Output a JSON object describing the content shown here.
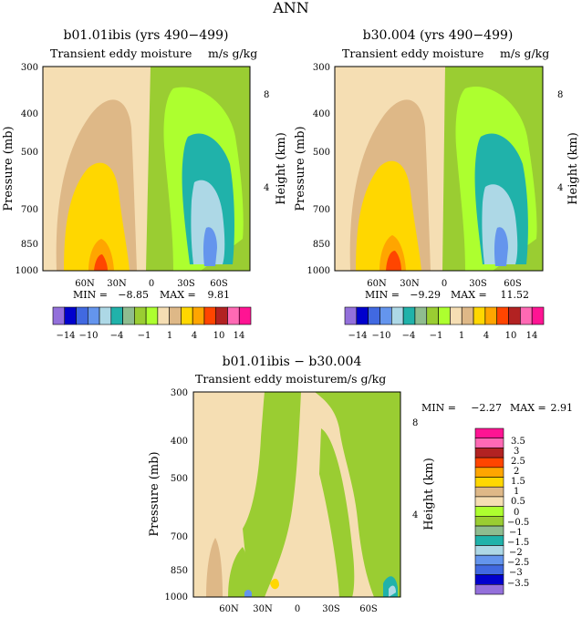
{
  "page_title": "ANN",
  "colors": {
    "fill_levels": [
      "#9370DB",
      "#0000CD",
      "#4169E1",
      "#6495ED",
      "#ADD8E6",
      "#20B2AA",
      "#8FBC8F",
      "#9ACD32",
      "#ADFF2F",
      "#F5DEB3",
      "#DEB887",
      "#FFD700",
      "#FFA500",
      "#FF4500",
      "#B22222",
      "#FF69B4",
      "#FF1493"
    ]
  },
  "panels": [
    {
      "id": "p1",
      "title": "b01.01ibis (yrs 490−499)",
      "subtitle_left": "Transient eddy moisture",
      "subtitle_right": "m/s g/kg",
      "ylabel": "Pressure (mb)",
      "ylabel_right": "Height (km)",
      "yticks": [
        "300",
        "400",
        "500",
        "700",
        "850",
        "1000"
      ],
      "yticks_right": [
        "8",
        "4"
      ],
      "xticks": [
        "60N",
        "30N",
        "0",
        "30S",
        "60S"
      ],
      "stats": {
        "min_label": "MIN =",
        "min_value": "−8.85",
        "max_label": "MAX =",
        "max_value": "9.81"
      }
    },
    {
      "id": "p2",
      "title": "b30.004 (yrs 490−499)",
      "subtitle_left": "Transient eddy moisture",
      "subtitle_right": "m/s g/kg",
      "ylabel": "Pressure (mb)",
      "ylabel_right": "Height (km)",
      "yticks": [
        "300",
        "400",
        "500",
        "700",
        "850",
        "1000"
      ],
      "yticks_right": [
        "8",
        "4"
      ],
      "xticks": [
        "60N",
        "30N",
        "0",
        "30S",
        "60S"
      ],
      "stats": {
        "min_label": "MIN =",
        "min_value": "−9.29",
        "max_label": "MAX =",
        "max_value": "11.52"
      }
    },
    {
      "id": "p3",
      "title": "b01.01ibis − b30.004",
      "subtitle_left": "Transient eddy moisture",
      "subtitle_right": "m/s g/kg",
      "ylabel": "Pressure (mb)",
      "ylabel_right": "Height (km)",
      "yticks": [
        "300",
        "400",
        "500",
        "700",
        "850",
        "1000"
      ],
      "yticks_right": [
        "8",
        "4"
      ],
      "xticks": [
        "60N",
        "30N",
        "0",
        "30S",
        "60S"
      ],
      "stats": {
        "min_label": "MIN =",
        "min_value": "−2.27",
        "max_label": "MAX =",
        "max_value": "2.91"
      }
    }
  ],
  "colorbar_horizontal": {
    "labels": [
      "−14",
      "−10",
      "−4",
      "−1",
      "1",
      "4",
      "10",
      "14"
    ]
  },
  "colorbar_vertical": {
    "labels": [
      "3.5",
      "3",
      "2.5",
      "2",
      "1.5",
      "1",
      "0.5",
      "0",
      "−0.5",
      "−1",
      "−1.5",
      "−2",
      "−2.5",
      "−3",
      "−3.5"
    ]
  },
  "chart_data": [
    {
      "type": "heatmap",
      "title": "b01.01ibis (yrs 490−499)",
      "subtitle": "Transient eddy moisture  m/s g/kg",
      "xlabel": "",
      "ylabel": "Pressure (mb)",
      "ylabel_right": "Height (km)",
      "xlim": [
        90,
        -90
      ],
      "ylim": [
        1000,
        300
      ],
      "ylog": true,
      "x_tick_labels": [
        "60N",
        "30N",
        "0",
        "30S",
        "60S"
      ],
      "y_ticks": [
        300,
        400,
        500,
        700,
        850,
        1000
      ],
      "y_right_ticks": [
        8,
        4
      ],
      "min": -8.85,
      "max": 9.81
    },
    {
      "type": "heatmap",
      "title": "b30.004 (yrs 490−499)",
      "subtitle": "Transient eddy moisture  m/s g/kg",
      "xlabel": "",
      "ylabel": "Pressure (mb)",
      "ylabel_right": "Height (km)",
      "xlim": [
        90,
        -90
      ],
      "ylim": [
        1000,
        300
      ],
      "ylog": true,
      "x_tick_labels": [
        "60N",
        "30N",
        "0",
        "30S",
        "60S"
      ],
      "y_ticks": [
        300,
        400,
        500,
        700,
        850,
        1000
      ],
      "y_right_ticks": [
        8,
        4
      ],
      "min": -9.29,
      "max": 11.52
    },
    {
      "type": "heatmap",
      "title": "b01.01ibis − b30.004",
      "subtitle": "Transient eddy moisture  m/s g/kg",
      "xlabel": "",
      "ylabel": "Pressure (mb)",
      "ylabel_right": "Height (km)",
      "xlim": [
        90,
        -90
      ],
      "ylim": [
        1000,
        300
      ],
      "ylog": true,
      "x_tick_labels": [
        "60N",
        "30N",
        "0",
        "30S",
        "60S"
      ],
      "y_ticks": [
        300,
        400,
        500,
        700,
        850,
        1000
      ],
      "y_right_ticks": [
        8,
        4
      ],
      "min": -2.27,
      "max": 2.91
    }
  ]
}
